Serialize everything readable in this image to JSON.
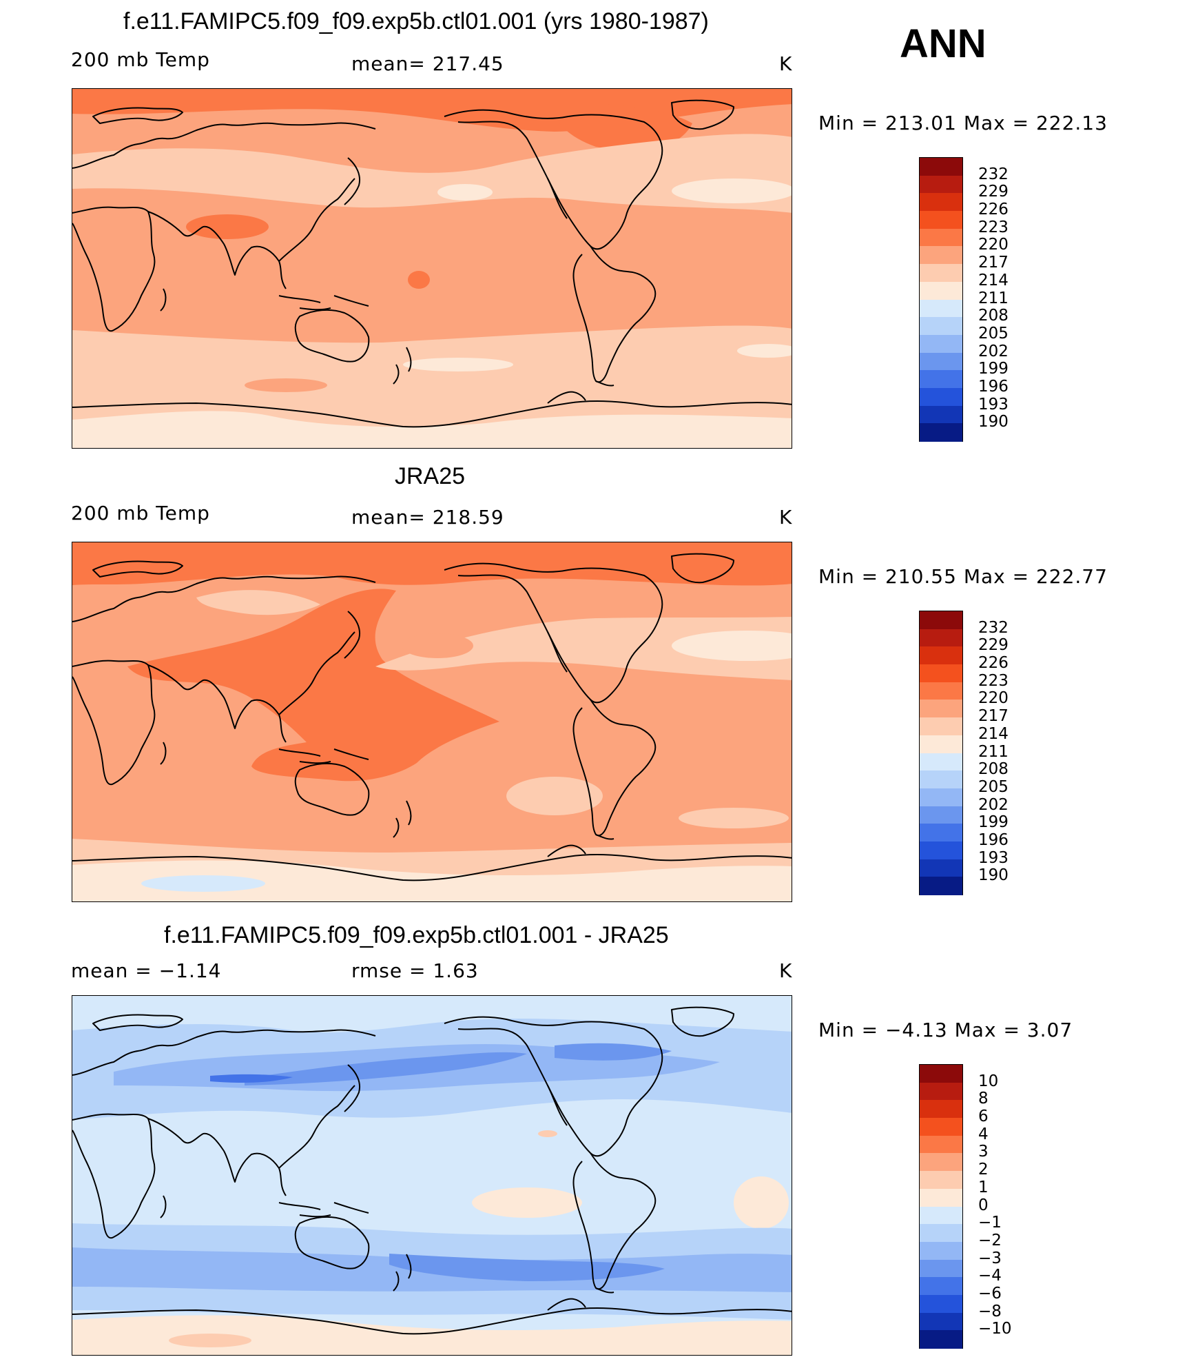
{
  "figure": {
    "season": "ANN",
    "panels": [
      {
        "title": "f.e11.FAMIPC5.f09_f09.exp5b.ctl01.001 (yrs 1980-1987)",
        "left_label": "200 mb Temp",
        "center_label": "mean=  217.45",
        "right_label": "K",
        "minmax": "Min  =  213.01  Max  =  222.13",
        "colorbar": {
          "levels": [
            "232",
            "229",
            "226",
            "223",
            "220",
            "217",
            "214",
            "211",
            "208",
            "205",
            "202",
            "199",
            "196",
            "193",
            "190"
          ],
          "colors": [
            "#8c0a0a",
            "#b71c10",
            "#d9300e",
            "#f4511e",
            "#fb7846",
            "#fca47d",
            "#fdccb0",
            "#fde9d8",
            "#d6e9fb",
            "#b6d3f9",
            "#93b7f5",
            "#6b96ee",
            "#4373e8",
            "#2453db",
            "#1236b6",
            "#071b85"
          ]
        }
      },
      {
        "title": "JRA25",
        "left_label": "200 mb Temp",
        "center_label": "mean=  218.59",
        "right_label": "K",
        "minmax": "Min  =  210.55  Max  =  222.77",
        "colorbar": {
          "levels": [
            "232",
            "229",
            "226",
            "223",
            "220",
            "217",
            "214",
            "211",
            "208",
            "205",
            "202",
            "199",
            "196",
            "193",
            "190"
          ],
          "colors": [
            "#8c0a0a",
            "#b71c10",
            "#d9300e",
            "#f4511e",
            "#fb7846",
            "#fca47d",
            "#fdccb0",
            "#fde9d8",
            "#d6e9fb",
            "#b6d3f9",
            "#93b7f5",
            "#6b96ee",
            "#4373e8",
            "#2453db",
            "#1236b6",
            "#071b85"
          ]
        }
      },
      {
        "title": "f.e11.FAMIPC5.f09_f09.exp5b.ctl01.001 - JRA25",
        "left_label": "mean  =    −1.14",
        "center_label": "rmse  =     1.63",
        "right_label": "K",
        "minmax": "Min  =    −4.13  Max  =      3.07",
        "colorbar": {
          "levels": [
            "10",
            "8",
            "6",
            "4",
            "3",
            "2",
            "1",
            "0",
            "−1",
            "−2",
            "−3",
            "−4",
            "−6",
            "−8",
            "−10"
          ],
          "colors": [
            "#8c0a0a",
            "#b71c10",
            "#d9300e",
            "#f4511e",
            "#fb7846",
            "#fca47d",
            "#fdccb0",
            "#fde9d8",
            "#d6e9fb",
            "#b6d3f9",
            "#93b7f5",
            "#6b96ee",
            "#4373e8",
            "#2453db",
            "#1236b6",
            "#071b85"
          ]
        }
      }
    ]
  },
  "colors": {
    "panel1_field": [
      "#fb7846",
      "#fca47d",
      "#fdccb0",
      "#fde9d8"
    ],
    "panel2_field": [
      "#fb7846",
      "#fca47d",
      "#fdccb0",
      "#fde9d8",
      "#d6e9fb"
    ],
    "panel3_field": [
      "#d6e9fb",
      "#b6d3f9",
      "#93b7f5",
      "#6b96ee",
      "#4373e8",
      "#fde9d8",
      "#fdccb0"
    ],
    "coastline": "#000000"
  }
}
